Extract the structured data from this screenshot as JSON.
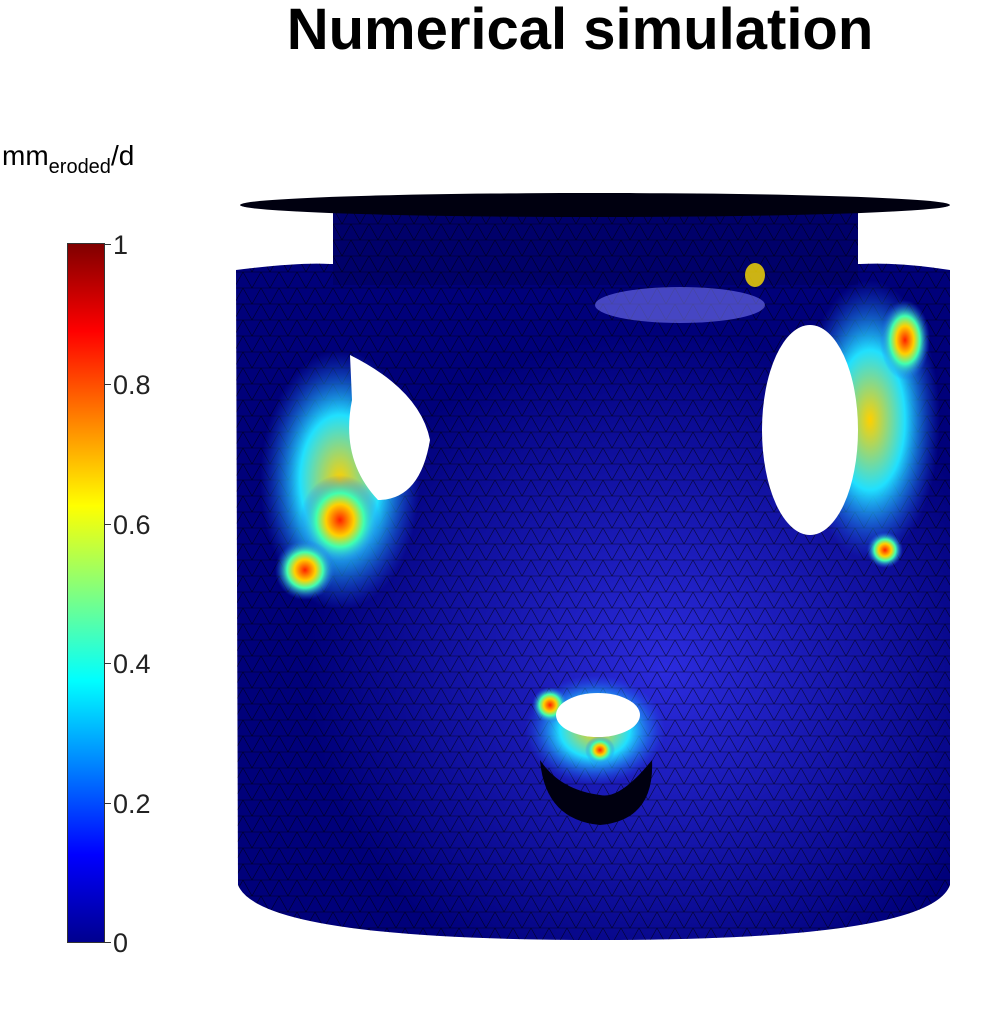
{
  "title": "Numerical simulation",
  "colorbar": {
    "unit_main": "mm",
    "unit_sub": "eroded",
    "unit_tail": "/d",
    "ticks": [
      "0",
      "0.2",
      "0.4",
      "0.6",
      "0.8",
      "1"
    ],
    "colormap": "jet",
    "min": 0,
    "max": 1
  },
  "render": {
    "subject": "eroded cylindrical part with holes, triangular mesh",
    "base_color": "#00007a",
    "mesh_line_color": "#000000",
    "hot_color": "#ff2000"
  }
}
